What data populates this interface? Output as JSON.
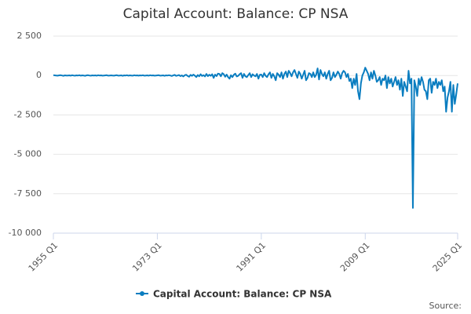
{
  "chart_data": {
    "type": "line",
    "title": "Capital Account: Balance: CP NSA",
    "source": "Source:",
    "categories": [
      "1955 Q1",
      null,
      null,
      null,
      null,
      null,
      null,
      null,
      null,
      null,
      null,
      null,
      null,
      null,
      null,
      null,
      null,
      null,
      null,
      null,
      null,
      null,
      null,
      null,
      null,
      null,
      null,
      null,
      null,
      null,
      null,
      null,
      null,
      null,
      null,
      null,
      null,
      null,
      null,
      null,
      null,
      null,
      null,
      null,
      null,
      null,
      null,
      null,
      null,
      null,
      null,
      null,
      null,
      null,
      null,
      null,
      null,
      null,
      null,
      null,
      null,
      null,
      null,
      null,
      null,
      null,
      null,
      null,
      null,
      null,
      null,
      null,
      "1973 Q1",
      null,
      null,
      null,
      null,
      null,
      null,
      null,
      null,
      null,
      null,
      null,
      null,
      null,
      null,
      null,
      null,
      null,
      null,
      null,
      null,
      null,
      null,
      null,
      null,
      null,
      null,
      null,
      null,
      null,
      null,
      null,
      null,
      null,
      null,
      null,
      null,
      null,
      null,
      null,
      null,
      null,
      null,
      null,
      null,
      null,
      null,
      null,
      null,
      null,
      null,
      null,
      null,
      null,
      null,
      null,
      null,
      null,
      null,
      null,
      null,
      null,
      null,
      null,
      null,
      null,
      null,
      null,
      null,
      null,
      null,
      null,
      "1991 Q1",
      null,
      null,
      null,
      null,
      null,
      null,
      null,
      null,
      null,
      null,
      null,
      null,
      null,
      null,
      null,
      null,
      null,
      null,
      null,
      null,
      null,
      null,
      null,
      null,
      null,
      null,
      null,
      null,
      null,
      null,
      null,
      null,
      null,
      null,
      null,
      null,
      null,
      null,
      null,
      null,
      null,
      null,
      null,
      null,
      null,
      null,
      null,
      null,
      null,
      null,
      null,
      null,
      null,
      null,
      null,
      null,
      null,
      null,
      null,
      null,
      null,
      null,
      null,
      null,
      null,
      null,
      null,
      null,
      null,
      null,
      null,
      "2009 Q1",
      null,
      null,
      null,
      null,
      null,
      null,
      null,
      null,
      null,
      null,
      null,
      null,
      null,
      null,
      null,
      null,
      null,
      null,
      null,
      null,
      null,
      null,
      null,
      null,
      null,
      null,
      null,
      null,
      null,
      null,
      null,
      null,
      null,
      null,
      null,
      null,
      null,
      null,
      null,
      null,
      null,
      null,
      null,
      null,
      null,
      null,
      null,
      null,
      null,
      null,
      null,
      null,
      null,
      null,
      null,
      null,
      null,
      null,
      null,
      null,
      null,
      null,
      null,
      "2025 Q1"
    ],
    "series": [
      {
        "name": "Capital Account: Balance: CP NSA",
        "color": "#0a7dc0",
        "values": [
          20,
          10,
          0,
          -10,
          10,
          20,
          0,
          -20,
          10,
          0,
          0,
          10,
          -10,
          20,
          0,
          -10,
          10,
          0,
          20,
          -10,
          10,
          0,
          -20,
          10,
          20,
          0,
          -10,
          10,
          0,
          10,
          -10,
          20,
          0,
          10,
          -10,
          0,
          10,
          20,
          -10,
          0,
          10,
          0,
          -10,
          10,
          20,
          -10,
          0,
          10,
          -20,
          10,
          0,
          20,
          -10,
          10,
          0,
          -10,
          20,
          0,
          10,
          -10,
          10,
          0,
          20,
          -10,
          0,
          10,
          -10,
          20,
          0,
          10,
          -10,
          0,
          10,
          20,
          -10,
          0,
          10,
          -20,
          10,
          0,
          20,
          0,
          -30,
          10,
          40,
          -20,
          0,
          30,
          -40,
          10,
          -60,
          20,
          50,
          -30,
          -80,
          40,
          -20,
          60,
          -10,
          -100,
          30,
          -50,
          80,
          -30,
          20,
          -60,
          100,
          -40,
          50,
          -20,
          80,
          -150,
          60,
          -40,
          120,
          100,
          -50,
          150,
          80,
          -80,
          60,
          -100,
          -200,
          20,
          -100,
          50,
          120,
          -60,
          -20,
          80,
          150,
          -150,
          100,
          -50,
          -100,
          30,
          150,
          -100,
          80,
          0,
          -50,
          100,
          -200,
          50,
          60,
          -100,
          150,
          -20,
          -100,
          80,
          200,
          -150,
          100,
          -50,
          -300,
          150,
          50,
          -100,
          200,
          -200,
          100,
          250,
          -100,
          300,
          150,
          -50,
          200,
          350,
          100,
          -150,
          250,
          100,
          -200,
          50,
          300,
          -300,
          -150,
          150,
          100,
          -100,
          200,
          -100,
          50,
          450,
          -250,
          350,
          100,
          -50,
          200,
          -200,
          100,
          300,
          -300,
          -150,
          200,
          -100,
          50,
          250,
          100,
          -200,
          150,
          300,
          200,
          -100,
          100,
          -350,
          -200,
          -800,
          -200,
          -600,
          100,
          -1000,
          -1500,
          -500,
          0,
          200,
          500,
          300,
          100,
          -300,
          200,
          -200,
          300,
          0,
          -400,
          -300,
          -100,
          -600,
          -200,
          -300,
          0,
          -800,
          -100,
          -500,
          -200,
          -700,
          -400,
          -100,
          -600,
          -300,
          -900,
          -200,
          -1300,
          -400,
          -700,
          -1000,
          300,
          -500,
          -200,
          -8400,
          -300,
          -700,
          -1300,
          -200,
          -600,
          -100,
          -400,
          -900,
          -1000,
          -1500,
          -300,
          -200,
          -1100,
          -400,
          -600,
          -200,
          -800,
          -400,
          -600,
          -300,
          -1000,
          -700,
          -2300,
          -1400,
          -1000,
          -400,
          -2300,
          -600,
          -1800,
          -1200,
          -500
        ]
      }
    ],
    "ylim": [
      -10000,
      2500
    ],
    "yticks": [
      {
        "value": 2500,
        "label": "2 500"
      },
      0,
      {
        "value": -2500,
        "label": "-2 500"
      },
      {
        "value": -5000,
        "label": "-5 000"
      },
      {
        "value": -7500,
        "label": "-7 500"
      },
      {
        "value": -10000,
        "label": "-10 000"
      }
    ],
    "grid": true
  }
}
